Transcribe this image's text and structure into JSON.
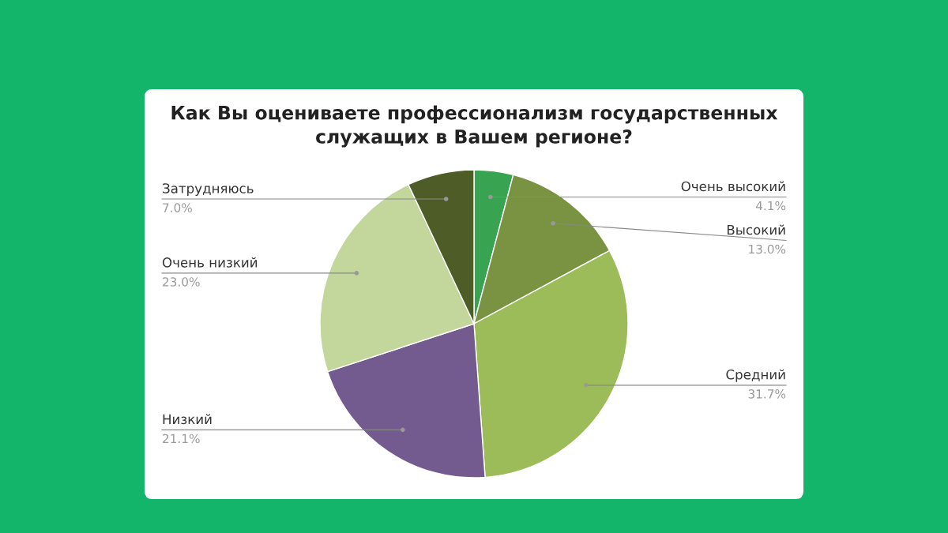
{
  "chart_data": {
    "type": "pie",
    "title": "Как Вы оцениваете профессионализм государственных служащих в Вашем регионе?",
    "categories": [
      "Очень высокий",
      "Высокий",
      "Средний",
      "Низкий",
      "Очень низкий",
      "Затрудняюсь"
    ],
    "values": [
      4.1,
      13.0,
      31.7,
      21.1,
      23.0,
      7.0
    ],
    "colors": [
      "#38a452",
      "#7a9343",
      "#9cbb59",
      "#735a8f",
      "#c3d69b",
      "#4e5d27"
    ],
    "value_labels": [
      "4.1%",
      "13.0%",
      "31.7%",
      "21.1%",
      "23.0%",
      "7.0%"
    ]
  }
}
